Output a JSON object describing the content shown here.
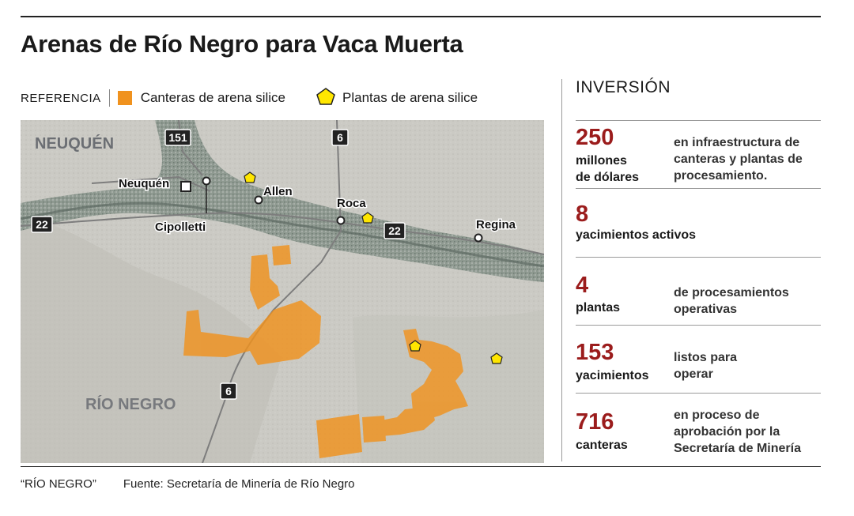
{
  "title": "Arenas de Río Negro para Vaca Muerta",
  "legend": {
    "reference_label": "REFERENCIA",
    "quarries_label": "Canteras de arena silice",
    "plants_label": "Plantas de arena silice"
  },
  "map": {
    "regions": {
      "neuquen": "NEUQUÉN",
      "rio_negro": "RÍO NEGRO"
    },
    "cities": {
      "neuquen": "Neuquén",
      "cipolletti": "Cipolletti",
      "allen": "Allen",
      "roca": "Roca",
      "regina": "Regina"
    },
    "routes": {
      "r151": "151",
      "r22_west": "22",
      "r22_center": "22",
      "r6_north": "6",
      "r6_south": "6"
    },
    "colors": {
      "quarry": "#f0921e",
      "plant": "#ffe600",
      "valley": "#8e9a90",
      "terrain": "#c9c8c2"
    }
  },
  "investment": {
    "title": "INVERSIÓN",
    "stats": [
      {
        "value": "250",
        "unit": "millones\nde dólares",
        "description": "en infraestructura de\ncanteras y plantas de\nprocesamiento."
      },
      {
        "value": "8",
        "unit": "yacimientos activos",
        "description": ""
      },
      {
        "value": "4",
        "unit": "plantas",
        "description": "de procesamientos\noperativas"
      },
      {
        "value": "153",
        "unit": "yacimientos",
        "description": "listos para\noperar"
      },
      {
        "value": "716",
        "unit": "canteras",
        "description": "en proceso de\naprobación por la\nSecretaría de Minería"
      }
    ],
    "accent_color": "#9b1c1c"
  },
  "footer": {
    "credit": "“RÍO NEGRO”",
    "source": "Fuente: Secretaría de Minería de Río Negro"
  }
}
